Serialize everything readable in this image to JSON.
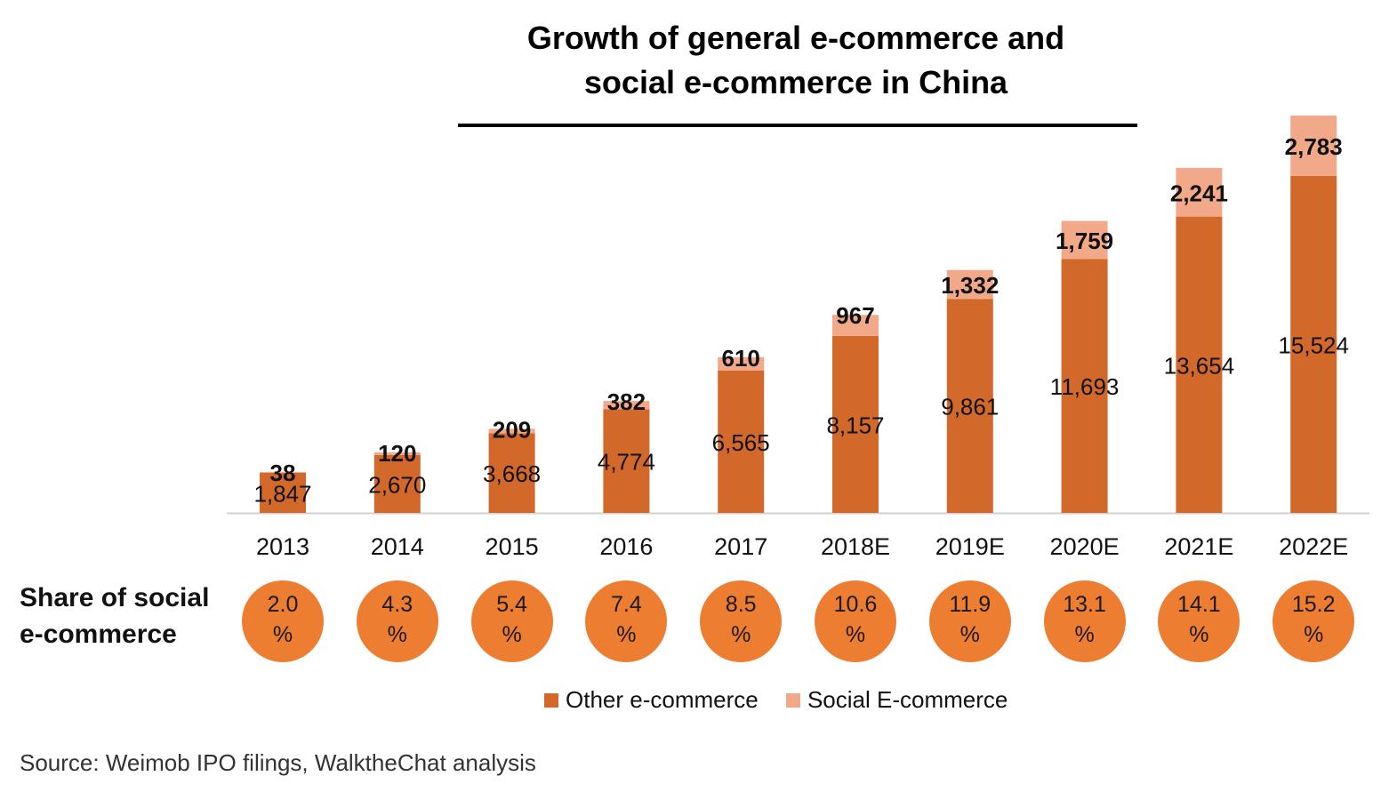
{
  "chart_data": {
    "type": "bar",
    "stacked": true,
    "title_lines": [
      "Growth of general e-commerce and",
      "social e-commerce in China"
    ],
    "categories": [
      "2013",
      "2014",
      "2015",
      "2016",
      "2017",
      "2018E",
      "2019E",
      "2020E",
      "2021E",
      "2022E"
    ],
    "series": [
      {
        "name": "Other e-commerce",
        "color": "#D2692B",
        "values": [
          1847,
          2670,
          3668,
          4774,
          6565,
          8157,
          9861,
          11693,
          13654,
          15524
        ],
        "labels": [
          "1,847",
          "2,670",
          "3,668",
          "4,774",
          "6,565",
          "8,157",
          "9,861",
          "11,693",
          "13,654",
          "15,524"
        ]
      },
      {
        "name": "Social E-commerce",
        "color": "#F2A98A",
        "values": [
          38,
          120,
          209,
          382,
          610,
          967,
          1332,
          1759,
          2241,
          2783
        ],
        "labels": [
          "38",
          "120",
          "209",
          "382",
          "610",
          "967",
          "1,332",
          "1,759",
          "2,241",
          "2,783"
        ]
      }
    ],
    "ylim": [
      0,
      18307
    ],
    "grid": false,
    "legend": "bottom",
    "xlabel": "",
    "ylabel": ""
  },
  "share": {
    "label_lines": [
      "Share of social",
      "e-commerce"
    ],
    "values": [
      "2.0",
      "4.3",
      "5.4",
      "7.4",
      "8.5",
      "10.6",
      "11.9",
      "13.1",
      "14.1",
      "15.2"
    ],
    "unit": "%",
    "circle_color": "#ED7D31"
  },
  "source_note": "Source: Weimob IPO filings,  WalktheChat analysis"
}
